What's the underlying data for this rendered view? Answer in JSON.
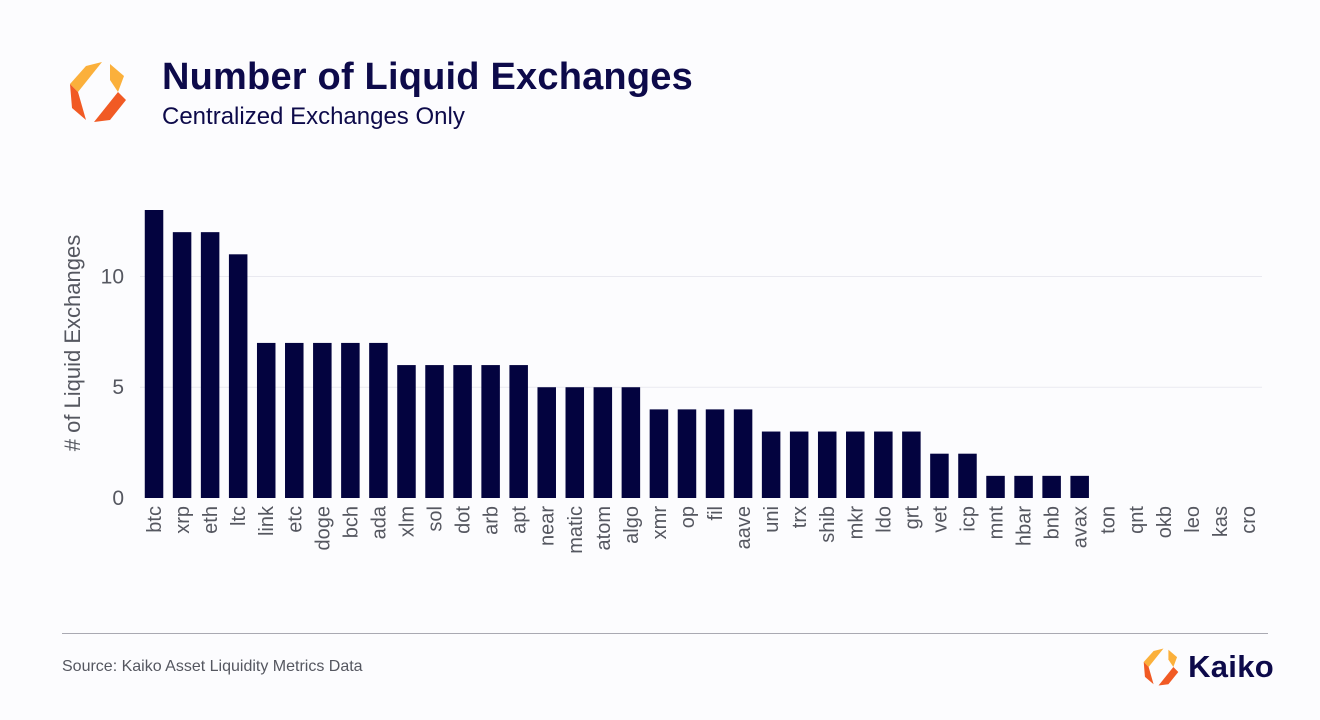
{
  "header": {
    "title": "Number of Liquid Exchanges",
    "subtitle": "Centralized Exchanges Only"
  },
  "footer": {
    "source": "Source: Kaiko Asset Liquidity Metrics Data",
    "brand": "Kaiko"
  },
  "colors": {
    "bar": "#03033f",
    "title": "#0d0a4a",
    "logo_light": "#fbb03b",
    "logo_dark": "#f15a24"
  },
  "icons": {
    "header_logo": "kaiko-logo-icon",
    "footer_logo": "kaiko-logo-icon"
  },
  "chart_data": {
    "type": "bar",
    "title": "Number of Liquid Exchanges",
    "subtitle": "Centralized Exchanges Only",
    "xlabel": "",
    "ylabel": "# of Liquid Exchanges",
    "ylim": [
      0,
      13.6
    ],
    "yticks": [
      0,
      5,
      10
    ],
    "grid": "horizontal",
    "categories": [
      "btc",
      "xrp",
      "eth",
      "ltc",
      "link",
      "etc",
      "doge",
      "bch",
      "ada",
      "xlm",
      "sol",
      "dot",
      "arb",
      "apt",
      "near",
      "matic",
      "atom",
      "algo",
      "xmr",
      "op",
      "fil",
      "aave",
      "uni",
      "trx",
      "shib",
      "mkr",
      "ldo",
      "grt",
      "vet",
      "icp",
      "mnt",
      "hbar",
      "bnb",
      "avax",
      "ton",
      "qnt",
      "okb",
      "leo",
      "kas",
      "cro"
    ],
    "values": [
      13,
      12,
      12,
      11,
      7,
      7,
      7,
      7,
      7,
      6,
      6,
      6,
      6,
      6,
      5,
      5,
      5,
      5,
      4,
      4,
      4,
      4,
      3,
      3,
      3,
      3,
      3,
      3,
      2,
      2,
      1,
      1,
      1,
      1,
      0,
      0,
      0,
      0,
      0,
      0
    ]
  }
}
